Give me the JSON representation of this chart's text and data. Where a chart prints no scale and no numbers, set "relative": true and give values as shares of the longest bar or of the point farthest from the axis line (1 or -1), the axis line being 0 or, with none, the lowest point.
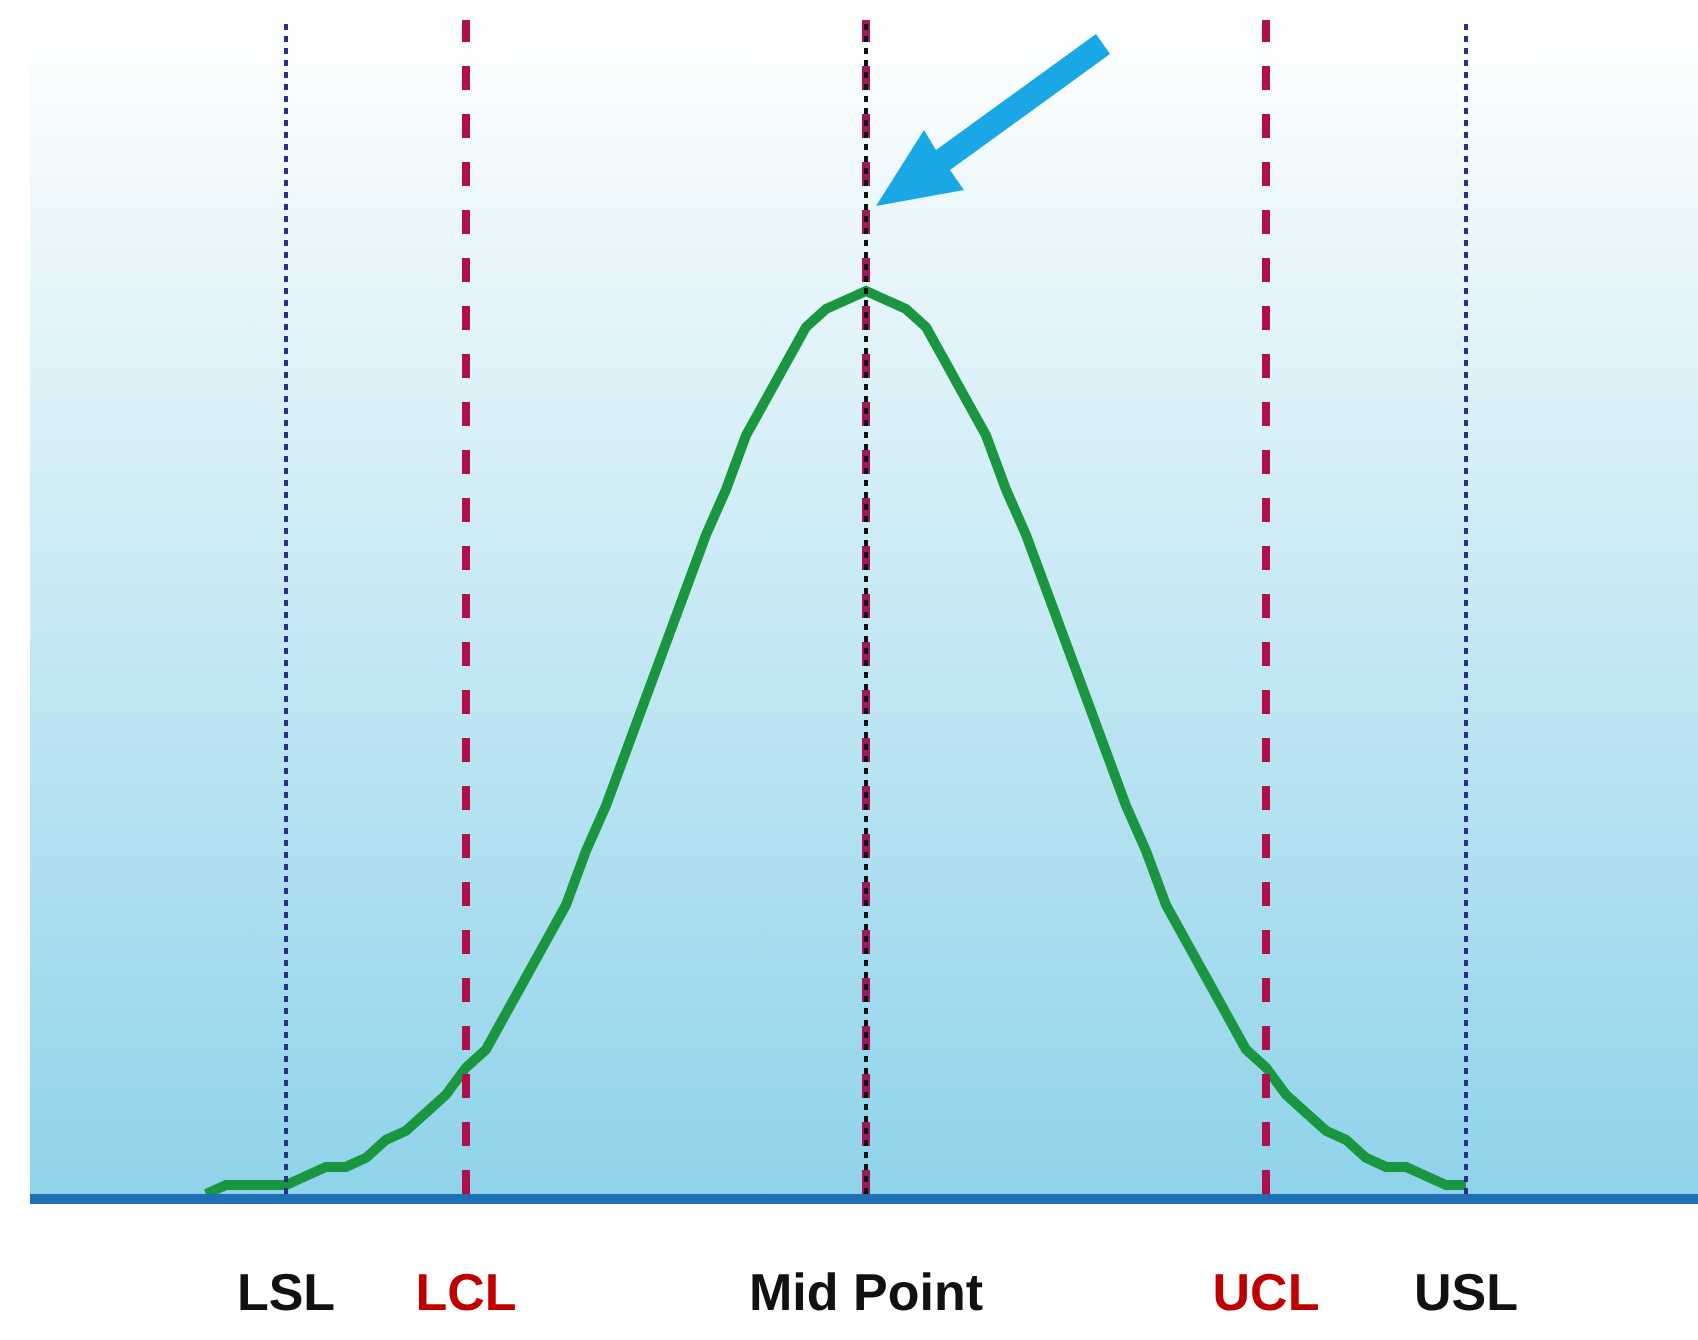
{
  "chart_data": {
    "type": "line",
    "relative": true,
    "grid": false,
    "marker": "none",
    "line_style": "solid",
    "categories": [
      null,
      null,
      null,
      null,
      "LSL",
      null,
      null,
      null,
      null,
      null,
      null,
      null,
      null,
      "LCL",
      null,
      null,
      null,
      null,
      null,
      null,
      null,
      null,
      null,
      null,
      null,
      null,
      null,
      null,
      null,
      null,
      null,
      null,
      null,
      "Mid Point",
      null,
      null,
      null,
      null,
      null,
      null,
      null,
      null,
      null,
      null,
      null,
      null,
      null,
      null,
      null,
      null,
      null,
      null,
      null,
      "UCL",
      null,
      null,
      null,
      null,
      null,
      null,
      null,
      null,
      null,
      "USL"
    ],
    "series": [
      {
        "color": "#1a9641",
        "values": [
          0,
          0.01,
          0.01,
          0.01,
          0.01,
          0.02,
          0.03,
          0.03,
          0.04,
          0.06,
          0.07,
          0.09,
          0.11,
          0.14,
          0.16,
          0.2,
          0.24,
          0.28,
          0.32,
          0.38,
          0.43,
          0.49,
          0.55,
          0.61,
          0.67,
          0.73,
          0.78,
          0.84,
          0.88,
          0.92,
          0.96,
          0.98,
          0.99,
          1,
          0.99,
          0.98,
          0.96,
          0.92,
          0.88,
          0.84,
          0.78,
          0.73,
          0.67,
          0.61,
          0.55,
          0.49,
          0.43,
          0.38,
          0.32,
          0.28,
          0.24,
          0.2,
          0.16,
          0.14,
          0.11,
          0.09,
          0.07,
          0.06,
          0.04,
          0.03,
          0.03,
          0.02,
          0.01,
          0.01
        ]
      }
    ],
    "ref_lines": [
      {
        "axis": "x",
        "value": "LSL",
        "color": "#2b2f8a",
        "line_style": "dotted"
      },
      {
        "axis": "x",
        "value": "LCL",
        "color": "#b0104a",
        "line_style": "dashed"
      },
      {
        "axis": "x",
        "value": "Mid Point",
        "color": "#a0185a",
        "line_style": "dashed"
      },
      {
        "axis": "x",
        "value": "Mid Point",
        "color": "#111111",
        "line_style": "dotted"
      },
      {
        "axis": "x",
        "value": "UCL",
        "color": "#b0104a",
        "line_style": "dashed"
      },
      {
        "axis": "x",
        "value": "USL",
        "color": "#2b2f8a",
        "line_style": "dotted"
      }
    ]
  }
}
